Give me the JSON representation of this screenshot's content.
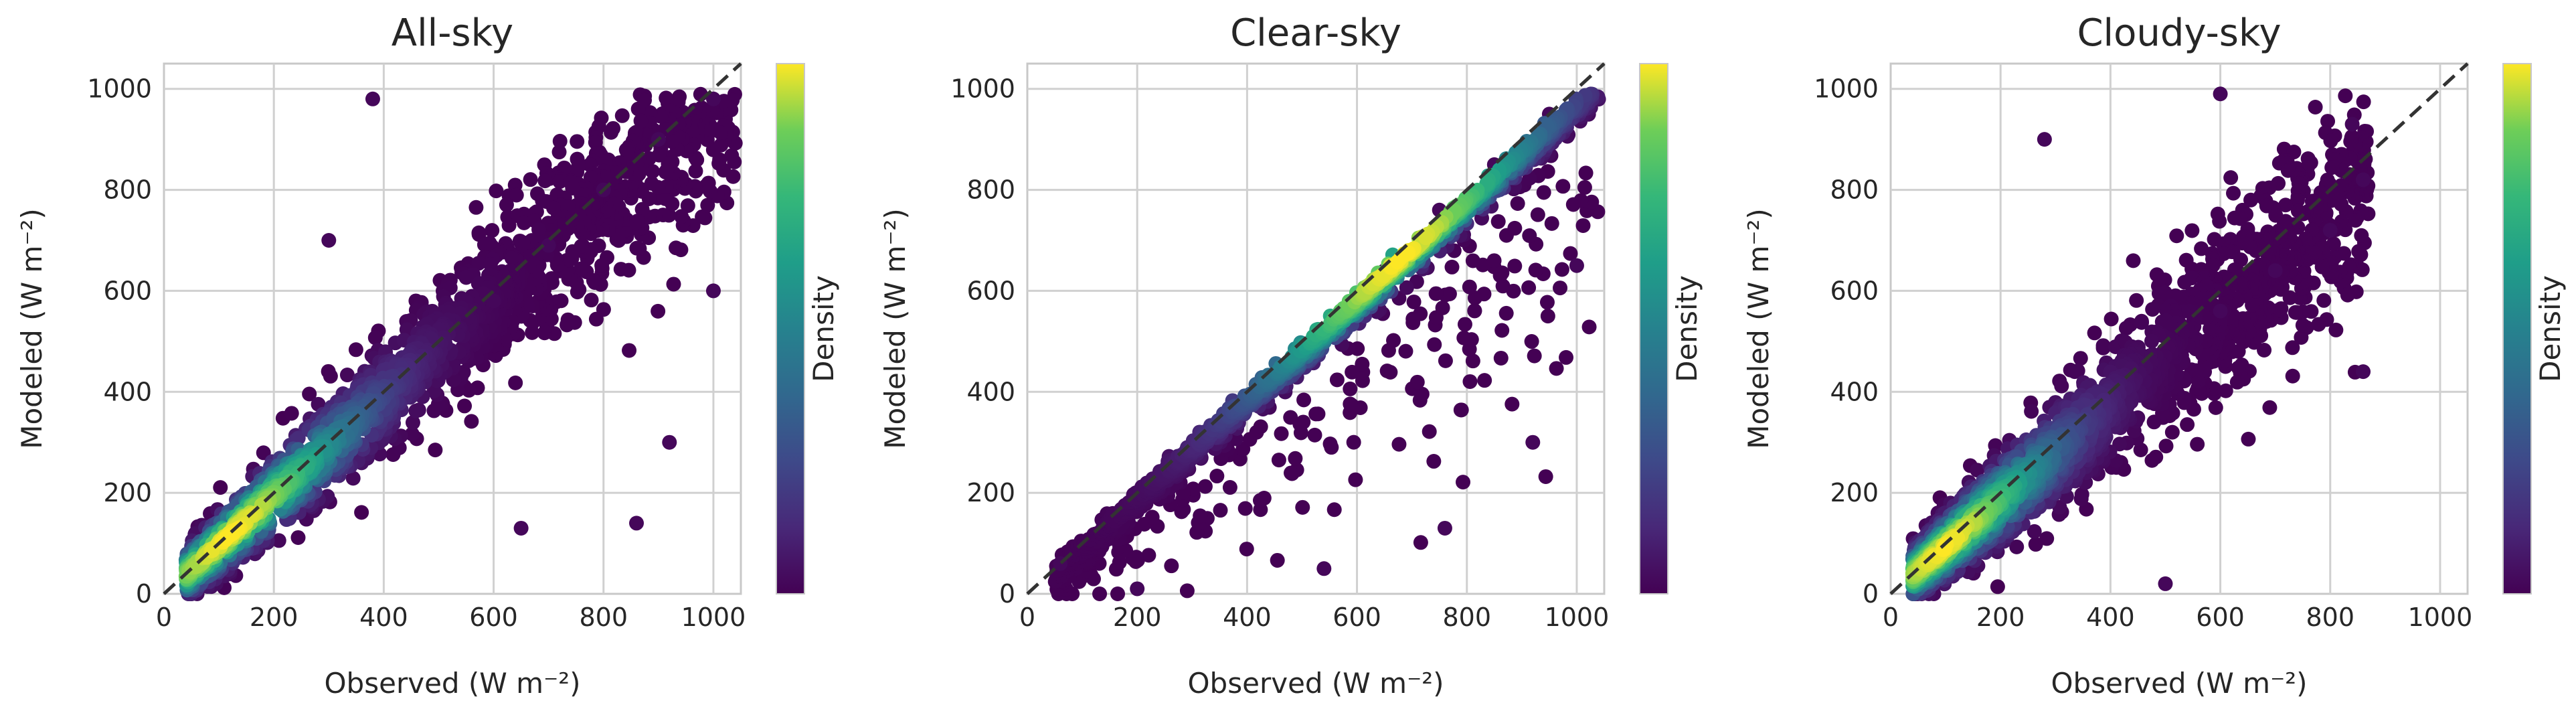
{
  "chart_data": [
    {
      "type": "scatter",
      "title": "All-sky",
      "xlabel": "Observed (W m⁻²)",
      "ylabel": "Modeled (W m⁻²)",
      "xlim": [
        0,
        1050
      ],
      "ylim": [
        0,
        1050
      ],
      "xticks": [
        0,
        200,
        400,
        600,
        800,
        1000
      ],
      "yticks": [
        0,
        200,
        400,
        600,
        800,
        1000
      ],
      "grid": true,
      "reference_line": "1:1 dashed",
      "colorbar_label": "Density",
      "colormap": "viridis",
      "points_summary": {
        "x_range": [
          40,
          1040
        ],
        "y_range": [
          0,
          990
        ],
        "density_peak": [
          120,
          110
        ]
      },
      "sample_points": [
        [
          120,
          110
        ],
        [
          200,
          190
        ],
        [
          300,
          280
        ],
        [
          400,
          370
        ],
        [
          500,
          480
        ],
        [
          600,
          580
        ],
        [
          700,
          690
        ],
        [
          800,
          800
        ],
        [
          900,
          900
        ],
        [
          1000,
          980
        ],
        [
          650,
          130
        ],
        [
          920,
          300
        ],
        [
          1000,
          600
        ],
        [
          300,
          700
        ],
        [
          380,
          980
        ],
        [
          860,
          140
        ]
      ]
    },
    {
      "type": "scatter",
      "title": "Clear-sky",
      "xlabel": "Observed (W m⁻²)",
      "ylabel": "Modeled (W m⁻²)",
      "xlim": [
        0,
        1050
      ],
      "ylim": [
        0,
        1050
      ],
      "xticks": [
        0,
        200,
        400,
        600,
        800,
        1000
      ],
      "yticks": [
        0,
        200,
        400,
        600,
        800,
        1000
      ],
      "grid": true,
      "reference_line": "1:1 dashed",
      "colorbar_label": "Density",
      "colormap": "viridis",
      "points_summary": {
        "x_range": [
          50,
          1040
        ],
        "y_range": [
          0,
          990
        ],
        "density_peak": [
          640,
          640
        ]
      },
      "sample_points": [
        [
          60,
          60
        ],
        [
          200,
          190
        ],
        [
          400,
          390
        ],
        [
          600,
          590
        ],
        [
          650,
          640
        ],
        [
          750,
          760
        ],
        [
          850,
          850
        ],
        [
          950,
          950
        ],
        [
          1020,
          970
        ],
        [
          200,
          10
        ],
        [
          540,
          50
        ],
        [
          760,
          130
        ],
        [
          920,
          300
        ],
        [
          1000,
          650
        ]
      ]
    },
    {
      "type": "scatter",
      "title": "Cloudy-sky",
      "xlabel": "Observed (W m⁻²)",
      "ylabel": "Modeled (W m⁻²)",
      "xlim": [
        0,
        1050
      ],
      "ylim": [
        0,
        1050
      ],
      "xticks": [
        0,
        200,
        400,
        600,
        800,
        1000
      ],
      "yticks": [
        0,
        200,
        400,
        600,
        800,
        1000
      ],
      "grid": true,
      "reference_line": "1:1 dashed",
      "colorbar_label": "Density",
      "colormap": "viridis",
      "points_summary": {
        "x_range": [
          40,
          870
        ],
        "y_range": [
          0,
          990
        ],
        "density_peak": [
          100,
          90
        ]
      },
      "sample_points": [
        [
          100,
          90
        ],
        [
          200,
          190
        ],
        [
          300,
          280
        ],
        [
          400,
          380
        ],
        [
          500,
          470
        ],
        [
          600,
          560
        ],
        [
          700,
          640
        ],
        [
          800,
          720
        ],
        [
          860,
          820
        ],
        [
          600,
          990
        ],
        [
          280,
          900
        ],
        [
          500,
          20
        ],
        [
          860,
          440
        ],
        [
          840,
          930
        ]
      ]
    }
  ]
}
